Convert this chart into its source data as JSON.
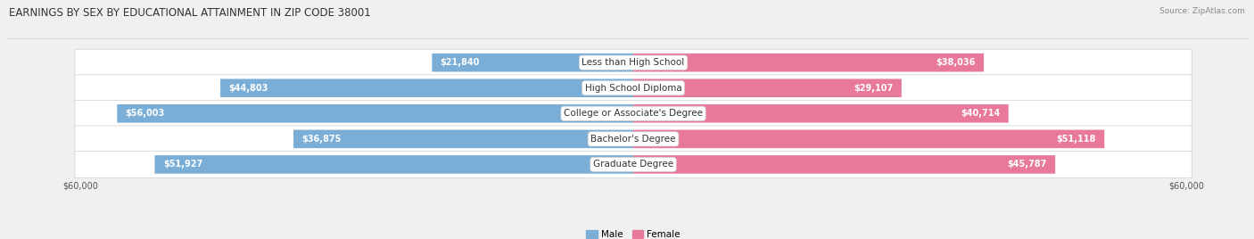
{
  "title": "EARNINGS BY SEX BY EDUCATIONAL ATTAINMENT IN ZIP CODE 38001",
  "source": "Source: ZipAtlas.com",
  "categories": [
    "Less than High School",
    "High School Diploma",
    "College or Associate's Degree",
    "Bachelor's Degree",
    "Graduate Degree"
  ],
  "male_values": [
    21840,
    44803,
    56003,
    36875,
    51927
  ],
  "female_values": [
    38036,
    29107,
    40714,
    51118,
    45787
  ],
  "male_color": "#7aaed6",
  "female_color": "#e8799a",
  "max_value": 60000,
  "background_color": "#f0f0f0",
  "row_background": "#ffffff",
  "row_border": "#d0d0d0",
  "title_fontsize": 8.5,
  "label_fontsize": 7.5,
  "value_fontsize": 7.0,
  "axis_label_fontsize": 7.0,
  "source_fontsize": 6.5
}
